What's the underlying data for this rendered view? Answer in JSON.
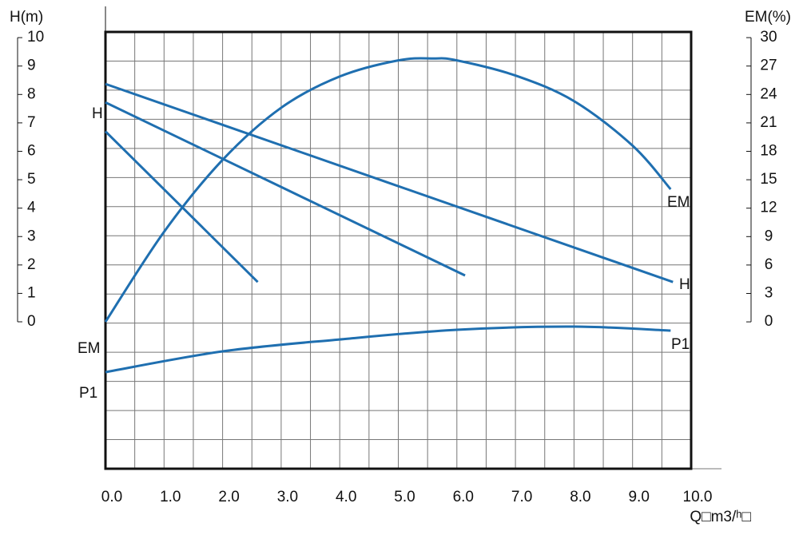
{
  "chart_data": {
    "type": "line",
    "y_label": "H(m)",
    "y2_label": "EM(%)",
    "x_label": "Q□m3/ʰ□",
    "xlim": [
      0,
      10
    ],
    "ylim": [
      -5.17,
      10.2
    ],
    "y2lim": [
      -15.5,
      30.6
    ],
    "xticks": [
      {
        "value": 0,
        "label": "0.0"
      },
      {
        "value": 1,
        "label": "1.0"
      },
      {
        "value": 2,
        "label": "2.0"
      },
      {
        "value": 3,
        "label": "3.0"
      },
      {
        "value": 4,
        "label": "4.0"
      },
      {
        "value": 5,
        "label": "5.0"
      },
      {
        "value": 6,
        "label": "6.0"
      },
      {
        "value": 7,
        "label": "7.0"
      },
      {
        "value": 8,
        "label": "8.0"
      },
      {
        "value": 9,
        "label": "9.0"
      },
      {
        "value": 10,
        "label": "10.0"
      }
    ],
    "yticks": [
      0,
      1,
      2,
      3,
      4,
      5,
      6,
      7,
      8,
      9,
      10
    ],
    "y2ticks": [
      0,
      3,
      6,
      9,
      12,
      15,
      18,
      21,
      24,
      27,
      30
    ],
    "grid": true,
    "series": [
      {
        "color": "#1f6fb0",
        "x": [
          0,
          2.6
        ],
        "values": [
          6.7,
          1.4
        ]
      },
      {
        "color": "#1f6fb0",
        "x": [
          0,
          6.14
        ],
        "values": [
          7.72,
          1.63
        ]
      },
      {
        "color": "#1f6fb0",
        "x": [
          0,
          9.69
        ],
        "values": [
          8.37,
          1.4
        ]
      },
      {
        "color": "#1f6fb0",
        "axis": "y2",
        "x": [
          0,
          1,
          2,
          3,
          4,
          5,
          5.6,
          6,
          7,
          8,
          9,
          9.65
        ],
        "values": [
          0,
          9.5,
          17.1,
          22.6,
          25.9,
          27.6,
          27.8,
          27.6,
          26.0,
          23.3,
          18.6,
          14.0
        ]
      },
      {
        "color": "#1f6fb0",
        "x": [
          0,
          2,
          4,
          6,
          8,
          9.65
        ],
        "values": [
          -1.77,
          -1.04,
          -0.62,
          -0.28,
          -0.17,
          -0.31
        ]
      }
    ],
    "annotations": [
      "H",
      "EM",
      "P1",
      "EM",
      "H",
      "P1"
    ]
  }
}
